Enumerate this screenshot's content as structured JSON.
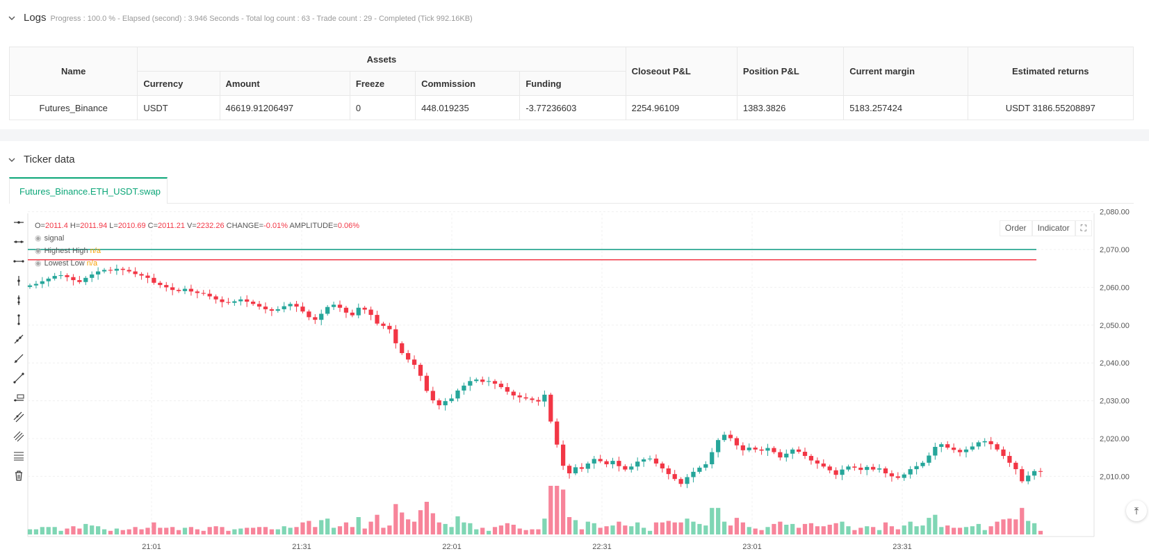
{
  "logs": {
    "title": "Logs",
    "summary": "Progress : 100.0 % - Elapsed (second) : 3.946  Seconds - Total log count : 63 - Trade count : 29 - Completed (Tick 992.16KB)"
  },
  "assets_table": {
    "headers": {
      "name": "Name",
      "assets": "Assets",
      "currency": "Currency",
      "amount": "Amount",
      "freeze": "Freeze",
      "commission": "Commission",
      "funding": "Funding",
      "closeout": "Closeout P&L",
      "position": "Position P&L",
      "margin": "Current margin",
      "returns": "Estimated returns"
    },
    "row": {
      "name": "Futures_Binance",
      "currency": "USDT",
      "amount": "46619.91206497",
      "freeze": "0",
      "commission": "448.019235",
      "funding": "-3.77236603",
      "closeout": "2254.96109",
      "position": "1383.3826",
      "margin": "5183.257424",
      "returns": "USDT 3186.55208897"
    }
  },
  "ticker": {
    "title": "Ticker data",
    "tab": "Futures_Binance.ETH_USDT.swap",
    "buttons": {
      "order": "Order",
      "indicator": "Indicator"
    },
    "legend": {
      "o_label": "O=",
      "o": "2011.4",
      "h_label": "H=",
      "h": "2011.94",
      "l_label": "L=",
      "l": "2010.69",
      "c_label": "C=",
      "c": "2011.21",
      "v_label": "V=",
      "v": "2232.26",
      "change_label": "CHANGE=",
      "change": "-0.01%",
      "amp_label": "AMPLITUDE=",
      "amp": "0.06%",
      "signal": "signal",
      "highest": "Highest High",
      "highest_val": "n/a",
      "lowest": "Lowest Low",
      "lowest_val": "n/a"
    }
  },
  "chart_data": {
    "type": "candlestick",
    "y_ticks": [
      "2,080.00",
      "2,070.00",
      "2,060.00",
      "2,050.00",
      "2,040.00",
      "2,030.00",
      "2,020.00",
      "2,010.00"
    ],
    "x_ticks": [
      "21:01",
      "21:31",
      "22:01",
      "22:31",
      "23:01",
      "23:31"
    ],
    "lines": {
      "highest_high": 2070.0,
      "lowest_low": 2067.3
    },
    "colors": {
      "up": "#26a69a",
      "down": "#f23645",
      "high_line": "#089981",
      "low_line": "#f23645"
    },
    "closes": [
      2060.5,
      2060.9,
      2061.6,
      2062.3,
      2063.0,
      2063.2,
      2062.7,
      2061.9,
      2061.4,
      2062.5,
      2063.4,
      2064.2,
      2064.6,
      2064.4,
      2064.9,
      2064.6,
      2064.2,
      2063.5,
      2063.1,
      2062.5,
      2061.2,
      2060.6,
      2060.0,
      2059.3,
      2059.0,
      2059.6,
      2058.9,
      2058.5,
      2058.3,
      2057.6,
      2056.8,
      2056.1,
      2055.9,
      2056.3,
      2056.8,
      2056.2,
      2055.6,
      2054.9,
      2054.2,
      2053.8,
      2054.2,
      2055.0,
      2055.6,
      2054.9,
      2053.6,
      2052.1,
      2051.4,
      2053.0,
      2054.8,
      2055.4,
      2054.6,
      2053.3,
      2052.6,
      2054.6,
      2054.1,
      2052.7,
      2050.4,
      2049.8,
      2048.9,
      2045.2,
      2042.6,
      2040.9,
      2039.5,
      2036.6,
      2032.6,
      2030.1,
      2028.8,
      2029.9,
      2030.6,
      2032.7,
      2034.0,
      2035.2,
      2035.6,
      2035.0,
      2035.2,
      2034.5,
      2033.6,
      2032.4,
      2031.4,
      2030.9,
      2030.6,
      2030.2,
      2029.8,
      2031.6,
      2024.5,
      2018.4,
      2012.8,
      2010.8,
      2012.4,
      2012.0,
      2013.4,
      2014.6,
      2014.0,
      2013.2,
      2014.1,
      2012.7,
      2011.8,
      2012.6,
      2013.9,
      2014.5,
      2014.7,
      2013.4,
      2012.1,
      2010.6,
      2009.3,
      2008.0,
      2009.8,
      2011.2,
      2012.3,
      2013.2,
      2016.4,
      2019.6,
      2021.0,
      2020.1,
      2018.2,
      2016.9,
      2017.6,
      2017.1,
      2016.8,
      2017.5,
      2016.4,
      2015.0,
      2016.0,
      2017.1,
      2016.5,
      2015.4,
      2014.2,
      2013.4,
      2012.6,
      2011.6,
      2010.4,
      2011.8,
      2012.6,
      2012.3,
      2011.7,
      2012.5,
      2011.8,
      2012.1,
      2010.8,
      2010.0,
      2009.6,
      2010.5,
      2011.9,
      2012.7,
      2013.6,
      2015.5,
      2017.8,
      2018.5,
      2017.6,
      2017.0,
      2016.4,
      2017.1,
      2017.9,
      2019.0,
      2019.3,
      2018.5,
      2017.1,
      2015.4,
      2013.6,
      2011.9,
      2008.7,
      2010.2,
      2011.4,
      2011.2
    ]
  }
}
